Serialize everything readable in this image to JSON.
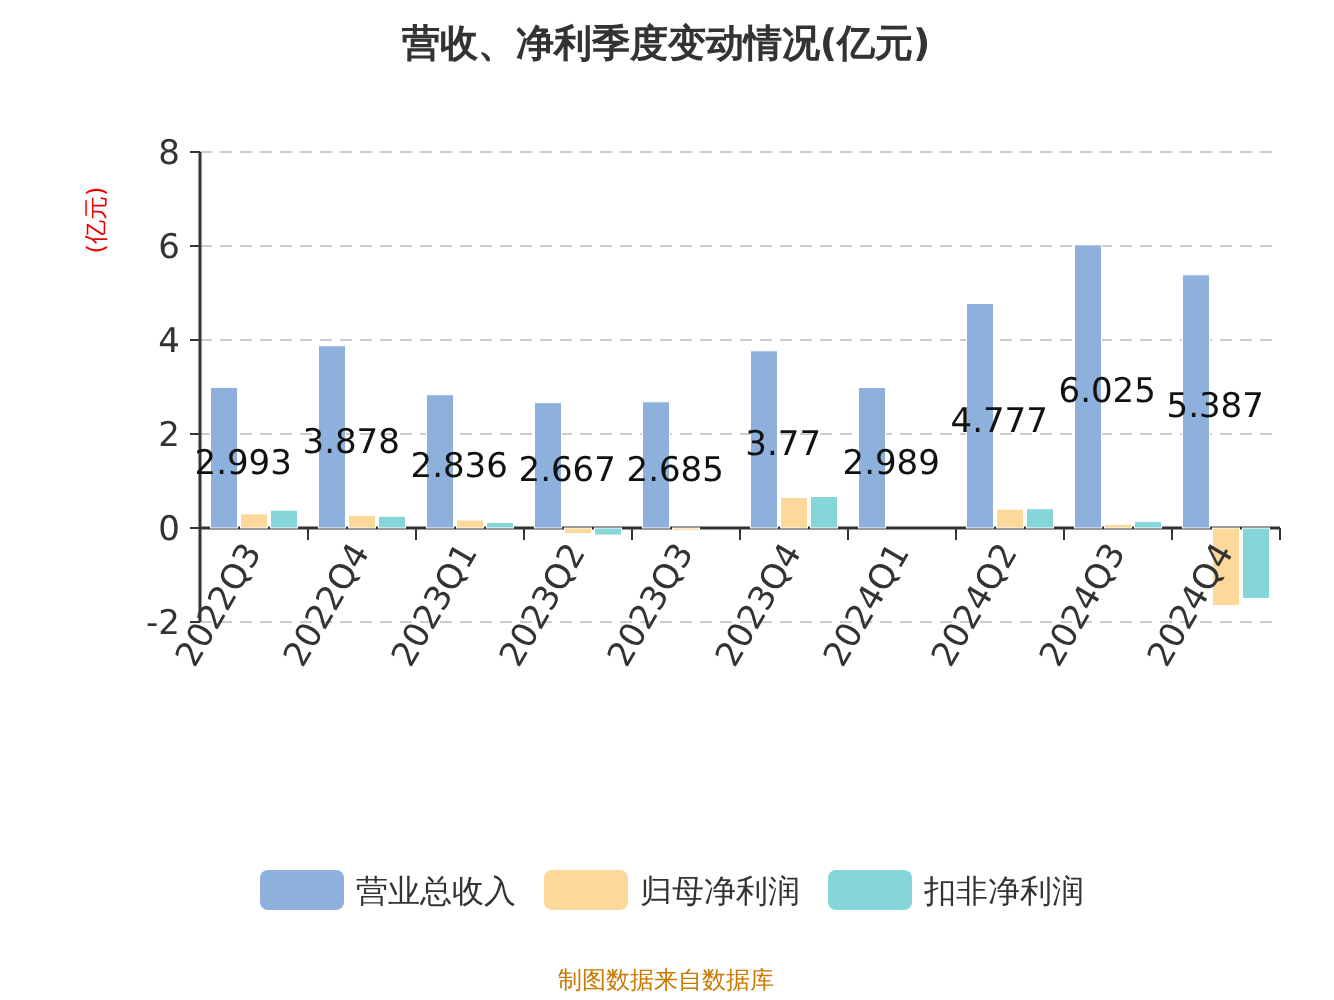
{
  "chart_data": {
    "type": "bar",
    "title": "营收、净利季度变动情况(亿元)",
    "ylabel": "(亿元)",
    "categories": [
      "2022Q3",
      "2022Q4",
      "2023Q1",
      "2023Q2",
      "2023Q3",
      "2023Q4",
      "2024Q1",
      "2024Q2",
      "2024Q3",
      "2024Q4"
    ],
    "series": [
      {
        "name": "营业总收入",
        "color": "#8eb0dc",
        "values": [
          2.993,
          3.878,
          2.836,
          2.667,
          2.685,
          3.77,
          2.989,
          4.777,
          6.025,
          5.387
        ],
        "value_labels": [
          "2.993",
          "3.878",
          "2.836",
          "2.667",
          "2.685",
          "3.77",
          "2.989",
          "4.777",
          "6.025",
          "5.387"
        ]
      },
      {
        "name": "归母净利润",
        "color": "#fdd89b",
        "values": [
          0.3,
          0.27,
          0.17,
          -0.12,
          -0.05,
          0.65,
          null,
          0.4,
          0.08,
          -1.65
        ]
      },
      {
        "name": "扣非净利润",
        "color": "#85d6d8",
        "values": [
          0.38,
          0.25,
          0.12,
          -0.15,
          null,
          0.67,
          null,
          0.41,
          0.14,
          -1.5
        ]
      }
    ],
    "ylim": [
      -2,
      8
    ],
    "yticks": [
      -2,
      0,
      2,
      4,
      6,
      8
    ],
    "grid": "y",
    "legend": "bottom",
    "annotations": [
      "制图数据来自数据库"
    ]
  }
}
